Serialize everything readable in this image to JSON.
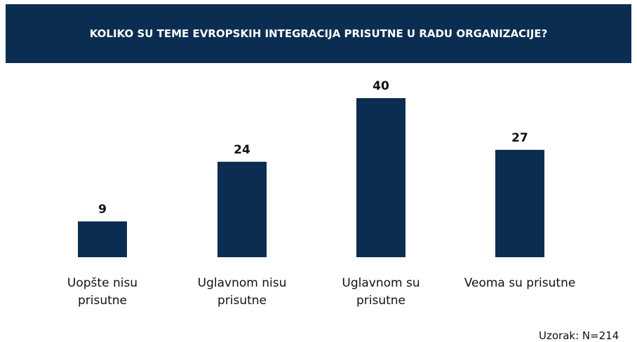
{
  "chart_data": {
    "type": "bar",
    "title": "KOLIKO SU TEME EVROPSKIH INTEGRACIJA PRISUTNE U RADU ORGANIZACIJE?",
    "categories": [
      "Uopšte nisu\nprisutne",
      "Uglavnom nisu\nprisutne",
      "Uglavnom su\nprisutne",
      "Veoma su prisutne"
    ],
    "values": [
      9,
      24,
      40,
      27
    ],
    "color": "#0b2d52",
    "note": "Uzorak: N=214"
  }
}
